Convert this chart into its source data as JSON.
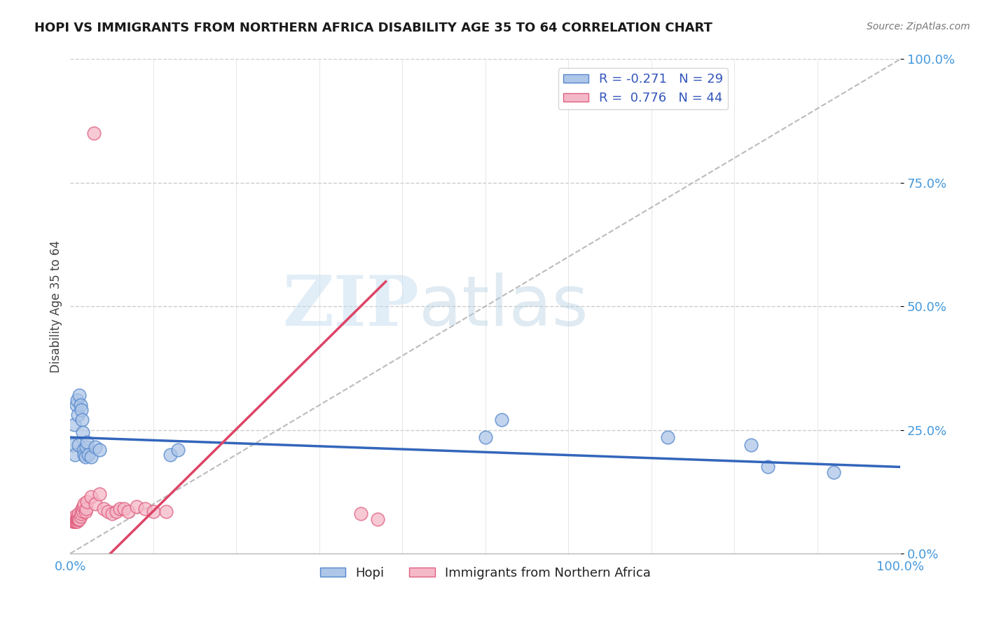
{
  "title": "HOPI VS IMMIGRANTS FROM NORTHERN AFRICA DISABILITY AGE 35 TO 64 CORRELATION CHART",
  "source": "Source: ZipAtlas.com",
  "xlabel": "",
  "ylabel": "Disability Age 35 to 64",
  "watermark_zip": "ZIP",
  "watermark_atlas": "atlas",
  "legend_hopi_r": "-0.271",
  "legend_hopi_n": "29",
  "legend_immig_r": "0.776",
  "legend_immig_n": "44",
  "hopi_color": "#aec6e8",
  "immig_color": "#f5b8c8",
  "hopi_edge_color": "#5588cc",
  "immig_edge_color": "#e06080",
  "hopi_line_color": "#3366bb",
  "immig_line_color": "#dd4466",
  "hopi_scatter": [
    [
      0.003,
      0.22
    ],
    [
      0.005,
      0.26
    ],
    [
      0.006,
      0.2
    ],
    [
      0.007,
      0.3
    ],
    [
      0.008,
      0.31
    ],
    [
      0.009,
      0.28
    ],
    [
      0.01,
      0.22
    ],
    [
      0.011,
      0.32
    ],
    [
      0.012,
      0.3
    ],
    [
      0.013,
      0.29
    ],
    [
      0.014,
      0.27
    ],
    [
      0.015,
      0.245
    ],
    [
      0.016,
      0.21
    ],
    [
      0.017,
      0.2
    ],
    [
      0.018,
      0.195
    ],
    [
      0.019,
      0.215
    ],
    [
      0.02,
      0.225
    ],
    [
      0.022,
      0.2
    ],
    [
      0.025,
      0.195
    ],
    [
      0.03,
      0.215
    ],
    [
      0.035,
      0.21
    ],
    [
      0.12,
      0.2
    ],
    [
      0.13,
      0.21
    ],
    [
      0.5,
      0.235
    ],
    [
      0.52,
      0.27
    ],
    [
      0.72,
      0.235
    ],
    [
      0.82,
      0.22
    ],
    [
      0.84,
      0.175
    ],
    [
      0.92,
      0.165
    ]
  ],
  "immig_scatter": [
    [
      0.002,
      0.07
    ],
    [
      0.003,
      0.07
    ],
    [
      0.003,
      0.065
    ],
    [
      0.004,
      0.065
    ],
    [
      0.004,
      0.07
    ],
    [
      0.005,
      0.065
    ],
    [
      0.005,
      0.07
    ],
    [
      0.006,
      0.065
    ],
    [
      0.006,
      0.075
    ],
    [
      0.007,
      0.065
    ],
    [
      0.007,
      0.07
    ],
    [
      0.008,
      0.065
    ],
    [
      0.008,
      0.07
    ],
    [
      0.009,
      0.07
    ],
    [
      0.009,
      0.075
    ],
    [
      0.01,
      0.07
    ],
    [
      0.01,
      0.08
    ],
    [
      0.011,
      0.07
    ],
    [
      0.012,
      0.075
    ],
    [
      0.013,
      0.08
    ],
    [
      0.014,
      0.09
    ],
    [
      0.015,
      0.085
    ],
    [
      0.016,
      0.095
    ],
    [
      0.017,
      0.1
    ],
    [
      0.018,
      0.085
    ],
    [
      0.019,
      0.09
    ],
    [
      0.02,
      0.105
    ],
    [
      0.025,
      0.115
    ],
    [
      0.028,
      0.85
    ],
    [
      0.03,
      0.1
    ],
    [
      0.035,
      0.12
    ],
    [
      0.04,
      0.09
    ],
    [
      0.045,
      0.085
    ],
    [
      0.05,
      0.08
    ],
    [
      0.055,
      0.085
    ],
    [
      0.06,
      0.09
    ],
    [
      0.065,
      0.09
    ],
    [
      0.07,
      0.085
    ],
    [
      0.08,
      0.095
    ],
    [
      0.09,
      0.09
    ],
    [
      0.1,
      0.085
    ],
    [
      0.115,
      0.085
    ],
    [
      0.35,
      0.08
    ],
    [
      0.37,
      0.07
    ]
  ],
  "hopi_trend": [
    0.0,
    1.0,
    0.235,
    0.175
  ],
  "immig_trend": [
    0.0,
    0.38,
    -0.08,
    0.55
  ],
  "xlim": [
    0.0,
    1.0
  ],
  "ylim": [
    0.0,
    1.0
  ],
  "x_ticks": [
    0.0,
    0.25,
    0.5,
    0.75,
    1.0
  ],
  "y_ticks": [
    0.0,
    0.25,
    0.5,
    0.75,
    1.0
  ],
  "x_tick_labels_bottom": [
    "0.0%",
    "",
    "",
    "",
    "100.0%"
  ],
  "y_tick_labels_right": [
    "0.0%",
    "25.0%",
    "50.0%",
    "75.0%",
    "100.0%"
  ],
  "bg_color": "#ffffff",
  "grid_color": "#cccccc"
}
